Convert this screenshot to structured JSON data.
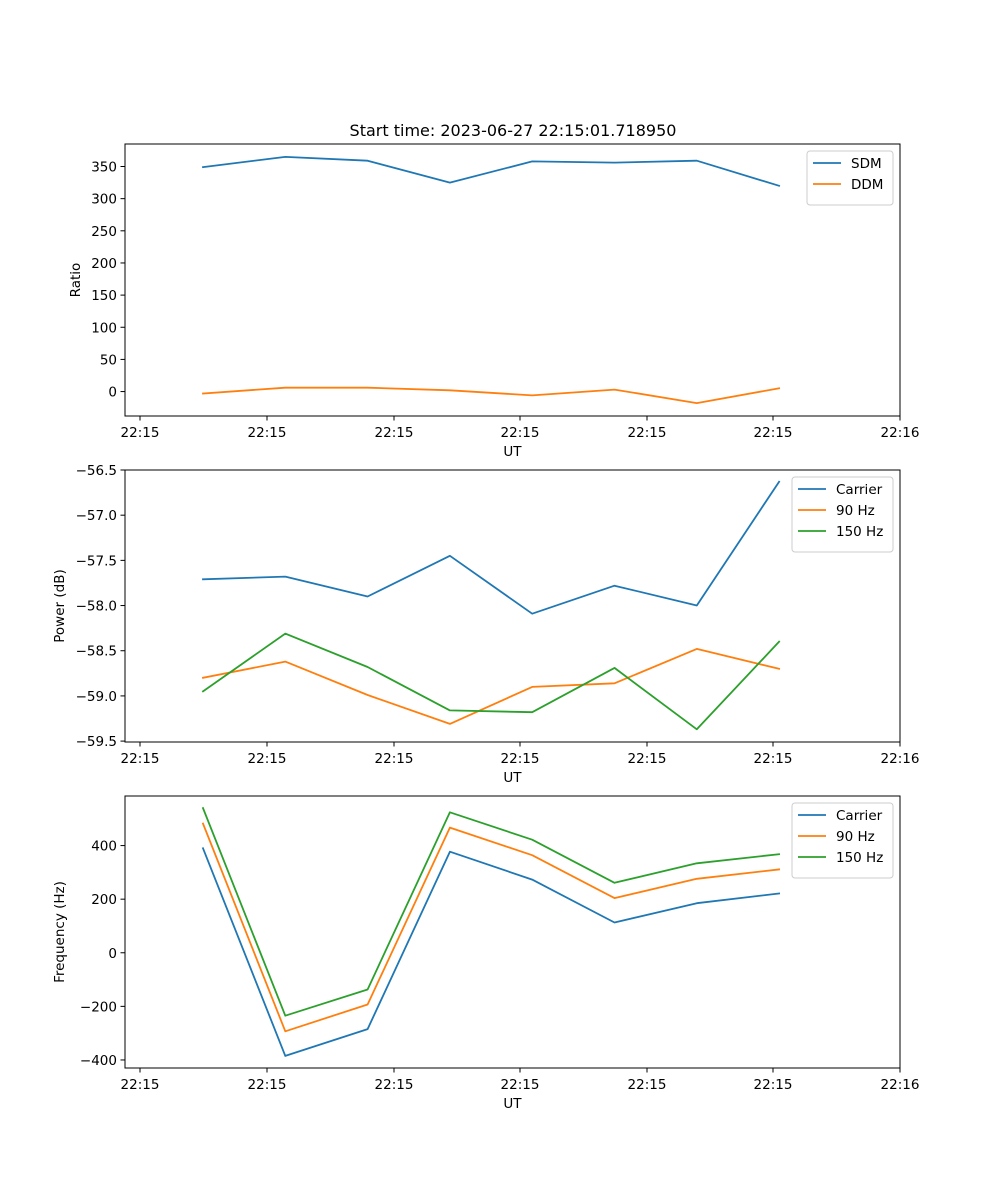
{
  "figure": {
    "title": "Start time: 2023-06-27 22:15:01.718950"
  },
  "chart_data": [
    {
      "type": "line",
      "title": "Start time: 2023-06-27 22:15:01.718950",
      "xlabel": "UT",
      "ylabel": "Ratio",
      "x_tick_labels": [
        "22:15",
        "22:15",
        "22:15",
        "22:15",
        "22:15",
        "22:15",
        "22:16"
      ],
      "y_ticks": [
        0,
        50,
        100,
        150,
        200,
        250,
        300,
        350
      ],
      "y_tick_labels": [
        "0",
        "50",
        "100",
        "150",
        "200",
        "250",
        "300",
        "350"
      ],
      "ylim": [
        -38,
        385
      ],
      "legend_position": "top-right",
      "series": [
        {
          "name": "SDM",
          "color": "#1f77b4",
          "values": [
            349,
            365,
            359,
            325,
            358,
            356,
            359,
            320
          ]
        },
        {
          "name": "DDM",
          "color": "#ff7f0e",
          "values": [
            -3,
            6,
            6,
            2,
            -6,
            3,
            -18,
            5
          ]
        }
      ]
    },
    {
      "type": "line",
      "title": "",
      "xlabel": "UT",
      "ylabel": "Power (dB)",
      "x_tick_labels": [
        "22:15",
        "22:15",
        "22:15",
        "22:15",
        "22:15",
        "22:15",
        "22:16"
      ],
      "y_ticks": [
        -59.5,
        -59.0,
        -58.5,
        -58.0,
        -57.5,
        -57.0,
        -56.5
      ],
      "y_tick_labels": [
        "−59.5",
        "−59.0",
        "−58.5",
        "−58.0",
        "−57.5",
        "−57.0",
        "−56.5"
      ],
      "ylim": [
        -59.51,
        -56.5
      ],
      "legend_position": "top-right",
      "series": [
        {
          "name": "Carrier",
          "color": "#1f77b4",
          "values": [
            -57.71,
            -57.68,
            -57.9,
            -57.45,
            -58.09,
            -57.78,
            -58.0,
            -56.63
          ]
        },
        {
          "name": "90 Hz",
          "color": "#ff7f0e",
          "values": [
            -58.8,
            -58.62,
            -58.99,
            -59.31,
            -58.9,
            -58.86,
            -58.48,
            -58.7
          ]
        },
        {
          "name": "150 Hz",
          "color": "#2ca02c",
          "values": [
            -58.95,
            -58.31,
            -58.68,
            -59.16,
            -59.18,
            -58.69,
            -59.37,
            -58.4
          ]
        }
      ]
    },
    {
      "type": "line",
      "title": "",
      "xlabel": "UT",
      "ylabel": "Frequency (Hz)",
      "x_tick_labels": [
        "22:15",
        "22:15",
        "22:15",
        "22:15",
        "22:15",
        "22:15",
        "22:16"
      ],
      "y_ticks": [
        -400,
        -200,
        0,
        200,
        400
      ],
      "y_tick_labels": [
        "−400",
        "−200",
        "0",
        "200",
        "400"
      ],
      "ylim": [
        -430,
        585
      ],
      "legend_position": "top-right",
      "series": [
        {
          "name": "Carrier",
          "color": "#1f77b4",
          "values": [
            390,
            -385,
            -285,
            377,
            273,
            113,
            185,
            221
          ]
        },
        {
          "name": "90 Hz",
          "color": "#ff7f0e",
          "values": [
            482,
            -293,
            -193,
            467,
            364,
            204,
            276,
            311
          ]
        },
        {
          "name": "150 Hz",
          "color": "#2ca02c",
          "values": [
            540,
            -235,
            -137,
            524,
            422,
            261,
            334,
            368
          ]
        }
      ]
    }
  ]
}
